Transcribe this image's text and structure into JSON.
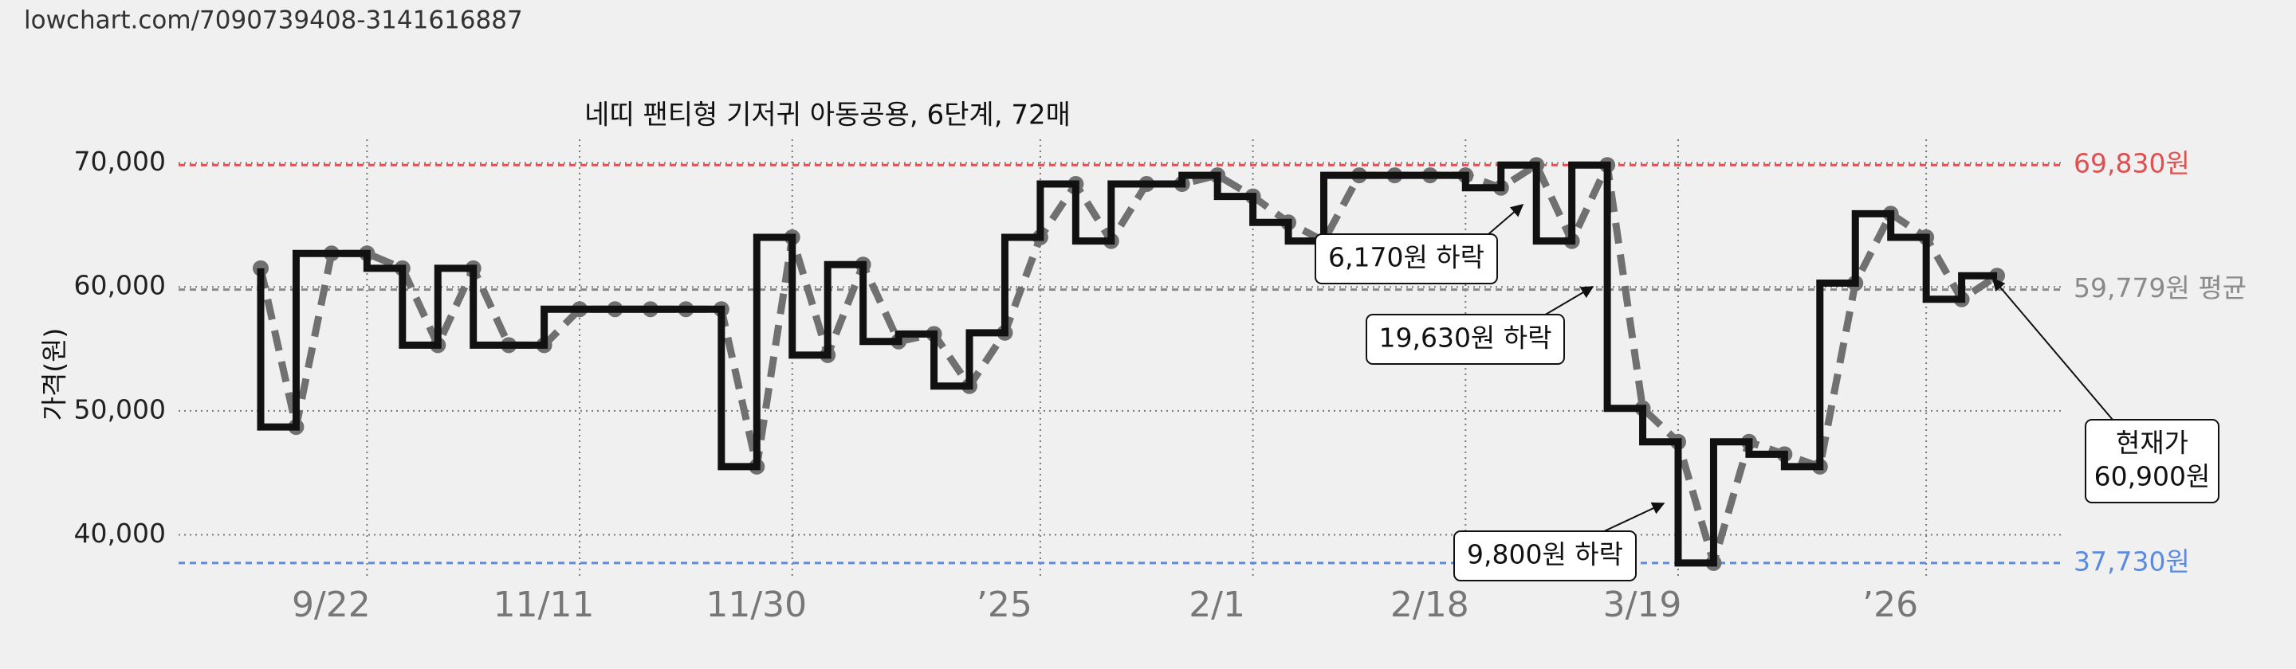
{
  "url": "lowchart.com/7090739408-3141616887",
  "chart_data": {
    "type": "step",
    "title": "네띠 팬티형 기저귀 아동공용, 6단계, 72매",
    "y_label": "가격(원)",
    "categories": [
      null,
      null,
      null,
      "9/22",
      null,
      null,
      null,
      null,
      null,
      "11/11",
      null,
      null,
      null,
      null,
      null,
      "11/30",
      null,
      null,
      null,
      null,
      null,
      null,
      "’25",
      null,
      null,
      null,
      null,
      null,
      "2/1",
      null,
      null,
      null,
      null,
      null,
      "2/18",
      null,
      null,
      null,
      null,
      null,
      "3/19",
      null,
      null,
      null,
      null,
      null,
      null,
      "’26",
      null,
      null
    ],
    "series": [
      {
        "step_color": "#111111",
        "line_color": "#707070",
        "values": [
          61500,
          48700,
          62700,
          62700,
          61500,
          55300,
          61500,
          55300,
          55300,
          58200,
          58200,
          58200,
          58200,
          58200,
          45500,
          64000,
          54500,
          61800,
          55600,
          56200,
          52000,
          56300,
          64000,
          68300,
          63700,
          68300,
          68300,
          69000,
          67300,
          65200,
          63700,
          69000,
          69000,
          69000,
          69000,
          68000,
          69830,
          63700,
          69830,
          50200,
          47500,
          37730,
          47500,
          46500,
          45500,
          60300,
          65900,
          64000,
          59000,
          60900
        ]
      }
    ],
    "ylim": [
      36500,
      71900
    ],
    "yticks": [
      {
        "value": 40000,
        "label": "40,000"
      },
      {
        "value": 50000,
        "label": "50,000"
      },
      {
        "value": 60000,
        "label": "60,000"
      },
      {
        "value": 70000,
        "label": "70,000"
      }
    ],
    "grid": true,
    "reference_lines": [
      {
        "value": 69830,
        "label": "69,830원",
        "color": "#e05050"
      },
      {
        "value": 59779,
        "label": "59,779원 평균",
        "color": "#8a8a8a"
      },
      {
        "value": 37730,
        "label": "37,730원",
        "color": "#5b8be0"
      }
    ],
    "annotations": [
      {
        "lines": [
          "6,170원 하락"
        ]
      },
      {
        "lines": [
          "19,630원 하락"
        ]
      },
      {
        "lines": [
          "9,800원 하락"
        ]
      },
      {
        "lines": [
          "현재가",
          "60,900원"
        ]
      }
    ]
  }
}
